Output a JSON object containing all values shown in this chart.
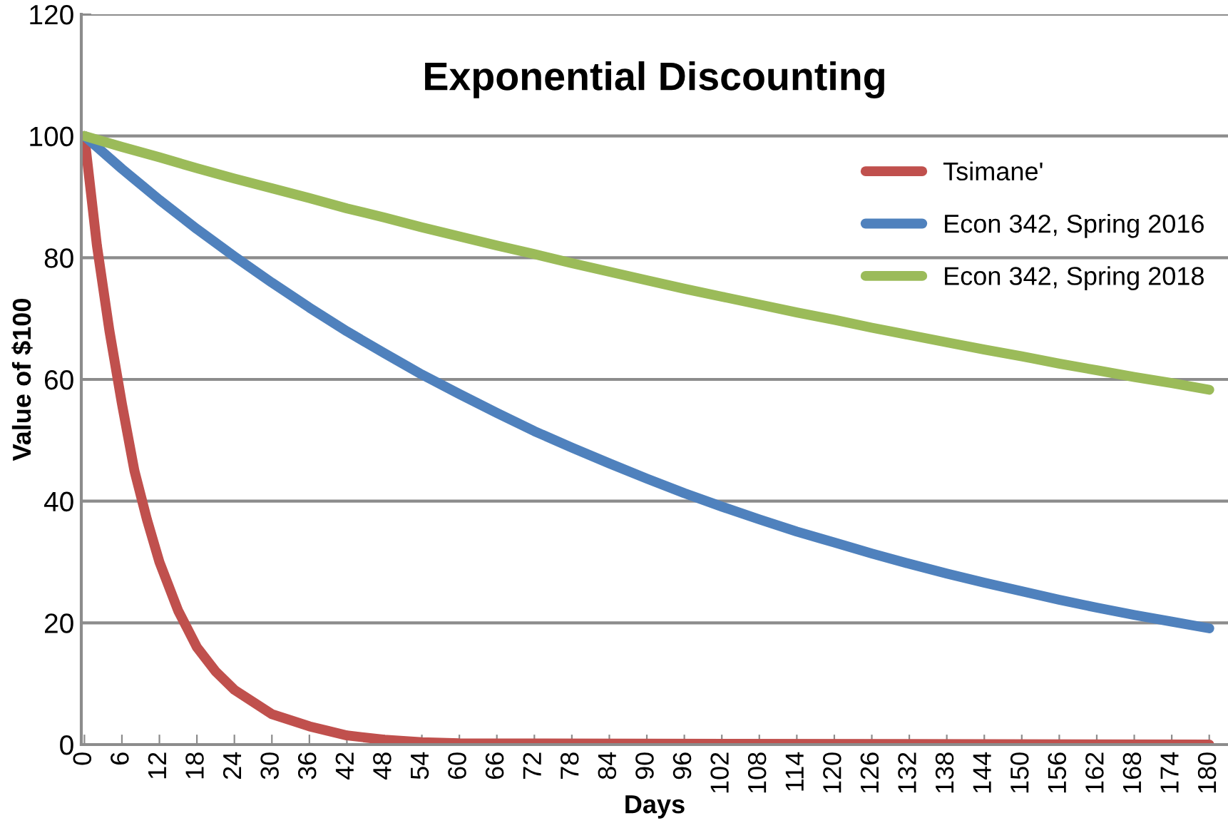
{
  "chart_data": {
    "type": "line",
    "title": "Exponential Discounting",
    "xlabel": "Days",
    "ylabel": "Value of $100",
    "xlim": [
      -0.5,
      183
    ],
    "xticks": [
      0,
      6,
      12,
      18,
      24,
      30,
      36,
      42,
      48,
      54,
      60,
      66,
      72,
      78,
      84,
      90,
      96,
      102,
      108,
      114,
      120,
      126,
      132,
      138,
      144,
      150,
      156,
      162,
      168,
      174,
      180
    ],
    "ylim": [
      0,
      120
    ],
    "yticks": [
      0,
      20,
      40,
      60,
      80,
      100,
      120
    ],
    "grid": "y",
    "legend": "top right",
    "marker": "none",
    "line_style": "solid",
    "series": [
      {
        "name": "Tsimane'",
        "color": "#c0504d",
        "x": [
          0,
          2,
          4,
          6,
          8,
          10,
          12,
          15,
          18,
          21,
          24,
          30,
          36,
          42,
          48,
          54,
          60,
          180
        ],
        "values": [
          100,
          82,
          68,
          56,
          45,
          37,
          30,
          22,
          16,
          12,
          9,
          5,
          3,
          1.5,
          0.8,
          0.4,
          0.2,
          0
        ]
      },
      {
        "name": "Econ 342, Spring 2016",
        "color": "#4f81bd",
        "x": [
          0,
          6,
          12,
          18,
          24,
          30,
          36,
          42,
          48,
          54,
          60,
          66,
          72,
          78,
          84,
          90,
          96,
          102,
          108,
          114,
          120,
          126,
          132,
          138,
          144,
          150,
          156,
          162,
          168,
          174,
          180
        ],
        "values": [
          100,
          94.6,
          89.5,
          84.7,
          80.2,
          75.9,
          71.8,
          67.9,
          64.3,
          60.8,
          57.6,
          54.5,
          51.5,
          48.8,
          46.2,
          43.7,
          41.3,
          39.1,
          37,
          35,
          33.2,
          31.4,
          29.7,
          28.1,
          26.6,
          25.2,
          23.8,
          22.5,
          21.3,
          20.2,
          19.1
        ]
      },
      {
        "name": "Econ 342, Spring 2018",
        "color": "#9bbb59",
        "x": [
          0,
          6,
          12,
          18,
          24,
          30,
          36,
          42,
          48,
          54,
          60,
          66,
          72,
          78,
          84,
          90,
          96,
          102,
          108,
          114,
          120,
          126,
          132,
          138,
          144,
          150,
          156,
          162,
          168,
          174,
          180
        ],
        "values": [
          100,
          98.2,
          96.5,
          94.7,
          93,
          91.4,
          89.8,
          88.1,
          86.6,
          85,
          83.5,
          82,
          80.6,
          79.1,
          77.7,
          76.3,
          74.9,
          73.6,
          72.3,
          71,
          69.8,
          68.5,
          67.3,
          66.1,
          64.9,
          63.8,
          62.6,
          61.5,
          60.4,
          59.4,
          58.3
        ]
      }
    ]
  }
}
